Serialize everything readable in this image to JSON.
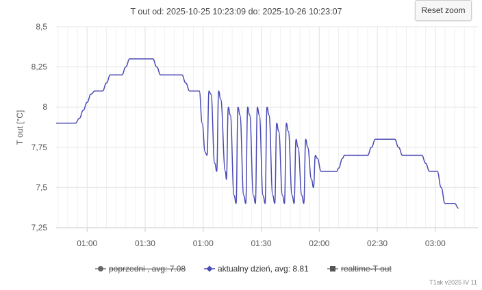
{
  "chart_data": {
    "type": "line",
    "title": "T out od: 2025-10-25 10:23:09 do: 2025-10-26 10:23:07",
    "ylabel": "T out [°C]",
    "xlabel": "",
    "ylim": [
      7.25,
      8.5
    ],
    "y_ticks": [
      7.25,
      7.5,
      7.75,
      8,
      8.25,
      8.5
    ],
    "y_tick_labels": [
      "7,25",
      "7,5",
      "7,75",
      "8",
      "8,25",
      "8,5"
    ],
    "x_range_minutes": [
      -16,
      202
    ],
    "x_ticks": [
      {
        "minute": 0,
        "label": "01:00"
      },
      {
        "minute": 30,
        "label": "01:30"
      },
      {
        "minute": 60,
        "label": "01:00"
      },
      {
        "minute": 90,
        "label": "01:30"
      },
      {
        "minute": 120,
        "label": "02:00"
      },
      {
        "minute": 150,
        "label": "02:30"
      },
      {
        "minute": 180,
        "label": "03:00"
      }
    ],
    "grid": true,
    "legend_position": "bottom",
    "series": [
      {
        "name": "aktualny dzień, avg: 8.81",
        "color": "#4b4bb4",
        "points": [
          [
            -16,
            7.9
          ],
          [
            -10,
            7.9
          ],
          [
            -6,
            7.9
          ],
          [
            -4,
            7.93
          ],
          [
            -2,
            7.98
          ],
          [
            0,
            8.03
          ],
          [
            2,
            8.08
          ],
          [
            4,
            8.1
          ],
          [
            8,
            8.1
          ],
          [
            10,
            8.15
          ],
          [
            12,
            8.2
          ],
          [
            18,
            8.2
          ],
          [
            20,
            8.25
          ],
          [
            22,
            8.3
          ],
          [
            34,
            8.3
          ],
          [
            36,
            8.25
          ],
          [
            38,
            8.2
          ],
          [
            49,
            8.2
          ],
          [
            51,
            8.15
          ],
          [
            53,
            8.1
          ],
          [
            58,
            8.1
          ],
          [
            59.5,
            7.9
          ],
          [
            61,
            7.72
          ],
          [
            62,
            7.7
          ],
          [
            63,
            8.1
          ],
          [
            64,
            8.08
          ],
          [
            66,
            7.65
          ],
          [
            67,
            7.6
          ],
          [
            68,
            8.1
          ],
          [
            69,
            8.05
          ],
          [
            71.5,
            7.6
          ],
          [
            72,
            7.55
          ],
          [
            73,
            8.0
          ],
          [
            74,
            7.95
          ],
          [
            76,
            7.45
          ],
          [
            77,
            7.4
          ],
          [
            78,
            8.0
          ],
          [
            79,
            7.95
          ],
          [
            81,
            7.45
          ],
          [
            82,
            7.4
          ],
          [
            83,
            8.0
          ],
          [
            84,
            7.95
          ],
          [
            86,
            7.45
          ],
          [
            87,
            7.4
          ],
          [
            88,
            8.0
          ],
          [
            89,
            7.95
          ],
          [
            91,
            7.45
          ],
          [
            92,
            7.4
          ],
          [
            93,
            8.0
          ],
          [
            94,
            7.95
          ],
          [
            96,
            7.45
          ],
          [
            97,
            7.4
          ],
          [
            98,
            7.9
          ],
          [
            99,
            7.85
          ],
          [
            101,
            7.45
          ],
          [
            102,
            7.4
          ],
          [
            103,
            7.9
          ],
          [
            104,
            7.85
          ],
          [
            106,
            7.45
          ],
          [
            107,
            7.4
          ],
          [
            108,
            7.8
          ],
          [
            109,
            7.75
          ],
          [
            111,
            7.45
          ],
          [
            112,
            7.4
          ],
          [
            113,
            7.8
          ],
          [
            114,
            7.75
          ],
          [
            116,
            7.55
          ],
          [
            117,
            7.5
          ],
          [
            118,
            7.7
          ],
          [
            119,
            7.68
          ],
          [
            121,
            7.6
          ],
          [
            129,
            7.6
          ],
          [
            130,
            7.62
          ],
          [
            132,
            7.68
          ],
          [
            133,
            7.7
          ],
          [
            145,
            7.7
          ],
          [
            147,
            7.75
          ],
          [
            149,
            7.8
          ],
          [
            159,
            7.8
          ],
          [
            161,
            7.75
          ],
          [
            163,
            7.7
          ],
          [
            173,
            7.7
          ],
          [
            175,
            7.65
          ],
          [
            177,
            7.6
          ],
          [
            181,
            7.6
          ],
          [
            183,
            7.5
          ],
          [
            185,
            7.4
          ],
          [
            190,
            7.4
          ],
          [
            192,
            7.37
          ]
        ]
      }
    ],
    "legend": [
      {
        "label": "poprzedni , avg: 7.08",
        "marker": "circle",
        "color": "#666666",
        "hidden": true
      },
      {
        "label": "aktualny dzień, avg: 8.81",
        "marker": "diamond",
        "color": "#4b4bb4",
        "hidden": false
      },
      {
        "label": "realtime-T out",
        "marker": "square",
        "color": "#555555",
        "hidden": true
      }
    ]
  },
  "controls": {
    "reset_zoom_label": "Reset zoom"
  },
  "credits": "T1ak v2025 IV 11"
}
